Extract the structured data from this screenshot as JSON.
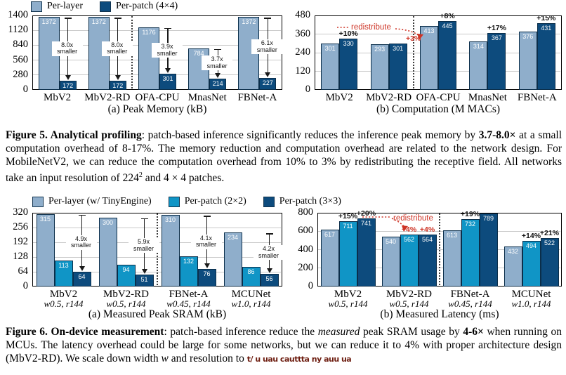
{
  "colors": {
    "light": "#8FAECB",
    "cyan": "#1095C6",
    "navy": "#0D4B7D",
    "red": "#CE3426",
    "grid": "#C9C9C9",
    "plot_border": "#000000"
  },
  "figure5": {
    "legend": [
      {
        "label": "Per-layer",
        "color": "light"
      },
      {
        "label": "Per-patch (4×4)",
        "color": "navy"
      }
    ],
    "caption": [
      {
        "t": "Figure 5. Analytical profiling",
        "b": 1
      },
      {
        "t": ": patch-based inference significantly reduces the inference peak memory by "
      },
      {
        "t": "3.7-8.0×",
        "b": 1
      },
      {
        "t": " at a small computation overhead of 8-17%. The memory reduction and computation overhead are related to the network design. For MobileNetV2, we can reduce the computation overhead from 10% to 3% by redistributing the receptive field. All networks take an input resolution of 224"
      },
      {
        "t": "2",
        "sup": 1
      },
      {
        "t": " and 4 × 4 patches."
      }
    ]
  },
  "figure6": {
    "legend": [
      {
        "label": "Per-layer (w/ TinyEngine)",
        "color": "light"
      },
      {
        "label": "Per-patch (2×2)",
        "color": "cyan"
      },
      {
        "label": "Per-patch (3×3)",
        "color": "navy"
      }
    ],
    "caption": [
      {
        "t": "Figure 6. On-device measurement",
        "b": 1
      },
      {
        "t": ": patch-based inference reduce the "
      },
      {
        "t": "measured",
        "i": 1
      },
      {
        "t": " peak SRAM usage by "
      },
      {
        "t": "4-6×",
        "b": 1
      },
      {
        "t": " when running on MCUs. The latency overhead could be large for some networks, but we can reduce it to 4% with proper architecture design (MbV2-RD). We scale down width "
      },
      {
        "t": "w",
        "i": 1
      },
      {
        "t": " and resolution to "
      },
      {
        "t": "t/ u uau cauttta ny auu ua",
        "garbled": 1
      }
    ]
  },
  "chart_data": [
    {
      "type": "bar",
      "id": "fig5a",
      "title": "(a) Peak Memory (kB)",
      "categories": [
        "MbV2",
        "MbV2-RD",
        "OFA-CPU",
        "MnasNet",
        "FBNet-A"
      ],
      "series": [
        {
          "name": "Per-layer",
          "color": "light",
          "values": [
            1372,
            1372,
            1176,
            784,
            1372
          ]
        },
        {
          "name": "Per-patch (4×4)",
          "color": "navy",
          "values": [
            172,
            172,
            301,
            214,
            227
          ]
        }
      ],
      "ylim": [
        0,
        1400
      ],
      "yticks": [
        0,
        280,
        560,
        840,
        1120,
        1400
      ],
      "reduction_annotations": [
        {
          "group": 0,
          "lines": [
            "8.0x",
            "smaller"
          ]
        },
        {
          "group": 1,
          "lines": [
            "8.0x",
            "smaller"
          ]
        },
        {
          "group": 2,
          "lines": [
            "3.9x",
            "smaller"
          ]
        },
        {
          "group": 3,
          "lines": [
            "3.7x",
            "smaller"
          ]
        },
        {
          "group": 4,
          "lines": [
            "6.1x",
            "smaller"
          ]
        }
      ],
      "separator_after_group": 1
    },
    {
      "type": "bar",
      "id": "fig5b",
      "title": "(b) Computation (M MACs)",
      "categories": [
        "MbV2",
        "MbV2-RD",
        "OFA-CPU",
        "MnasNet",
        "FBNet-A"
      ],
      "series": [
        {
          "name": "Per-layer",
          "color": "light",
          "values": [
            301,
            293,
            413,
            314,
            376
          ]
        },
        {
          "name": "Per-patch (4×4)",
          "color": "navy",
          "values": [
            330,
            301,
            445,
            367,
            431
          ]
        }
      ],
      "ylim": [
        0,
        480
      ],
      "yticks": [
        0,
        120,
        240,
        360,
        480
      ],
      "pct_labels": [
        {
          "group": 0,
          "series": 1,
          "text": "+10%"
        },
        {
          "group": 1,
          "series": 1,
          "text": "+3%",
          "red": true,
          "dx": 22
        },
        {
          "group": 2,
          "series": 1,
          "text": "+8%"
        },
        {
          "group": 3,
          "series": 1,
          "text": "+17%"
        },
        {
          "group": 4,
          "series": 1,
          "text": "+15%"
        }
      ],
      "redistribute_label": "redistribute",
      "separator_after_group": 1
    },
    {
      "type": "bar",
      "id": "fig6a",
      "title": "(a) Measured Peak SRAM (kB)",
      "categories": [
        "MbV2",
        "MbV2-RD",
        "FBNet-A",
        "MCUNet"
      ],
      "category_sublabels": [
        "w0.5, r144",
        "w0.5, r144",
        "w0.45, r144",
        "w1.0, r144"
      ],
      "series": [
        {
          "name": "Per-layer (w/ TinyEngine)",
          "color": "light",
          "values": [
            315,
            300,
            310,
            234
          ]
        },
        {
          "name": "Per-patch (2×2)",
          "color": "cyan",
          "values": [
            113,
            94,
            132,
            86
          ]
        },
        {
          "name": "Per-patch (3×3)",
          "color": "navy",
          "values": [
            64,
            51,
            76,
            56
          ]
        }
      ],
      "ylim": [
        0,
        320
      ],
      "yticks": [
        0,
        64,
        128,
        192,
        256,
        320
      ],
      "reduction_annotations": [
        {
          "group": 0,
          "lines": [
            "4.9x",
            "smaller"
          ]
        },
        {
          "group": 1,
          "lines": [
            "5.9x",
            "smaller"
          ]
        },
        {
          "group": 2,
          "lines": [
            "4.1x",
            "smaller"
          ]
        },
        {
          "group": 3,
          "lines": [
            "4.2x",
            "smaller"
          ]
        }
      ],
      "separator_after_group": 1
    },
    {
      "type": "bar",
      "id": "fig6b",
      "title": "(b) Measured Latency (ms)",
      "categories": [
        "MbV2",
        "MbV2-RD",
        "FBNet-A",
        "MCUNet"
      ],
      "category_sublabels": [
        "w0.5, r144",
        "w0.5, r144",
        "w0.45, r144",
        "w1.0, r144"
      ],
      "series": [
        {
          "name": "Per-layer (w/ TinyEngine)",
          "color": "light",
          "values": [
            617,
            540,
            613,
            432
          ]
        },
        {
          "name": "Per-patch (2×2)",
          "color": "cyan",
          "values": [
            711,
            562,
            732,
            494
          ]
        },
        {
          "name": "Per-patch (3×3)",
          "color": "navy",
          "values": [
            741,
            564,
            789,
            522
          ]
        }
      ],
      "ylim": [
        0,
        800
      ],
      "yticks": [
        0,
        200,
        400,
        600,
        800
      ],
      "pct_labels": [
        {
          "group": 0,
          "series": 1,
          "text": "+15%"
        },
        {
          "group": 0,
          "series": 2,
          "text": "+20%"
        },
        {
          "group": 1,
          "series": 1,
          "text": "+4%",
          "red": true
        },
        {
          "group": 1,
          "series": 2,
          "text": "+4%",
          "red": true
        },
        {
          "group": 2,
          "series": 1,
          "text": "+19%"
        },
        {
          "group": 3,
          "series": 1,
          "text": "+14%"
        },
        {
          "group": 3,
          "series": 2,
          "text": "+21%"
        }
      ],
      "redistribute_label": "redistribute",
      "separator_after_group": 1
    }
  ]
}
